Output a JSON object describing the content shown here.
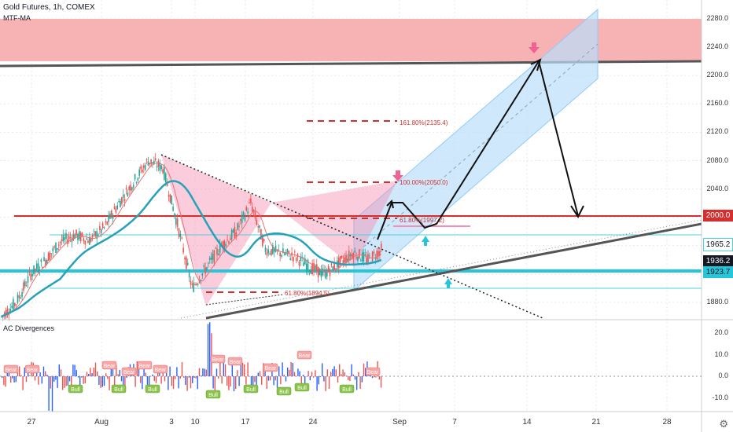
{
  "header": {
    "symbol_line": "Gold Futures, 1h, COMEX",
    "indicator_main": "MTF-MA",
    "indicator_sub": "AC Divergences"
  },
  "chart_data": [
    {
      "type": "line",
      "title": "Gold Futures, 1h, COMEX",
      "ylim": [
        1855,
        2295
      ],
      "y_ticks": [
        "2280.0",
        "2240.0",
        "2200.0",
        "2160.0",
        "2120.0",
        "2080.0",
        "2040.0",
        "2000.0",
        "1960.0",
        "1920.0",
        "1880.0"
      ],
      "x_ticks": [
        "27",
        "Aug",
        "3",
        "10",
        "17",
        "24",
        "Sep",
        "7",
        "14",
        "21",
        "28"
      ],
      "series": [
        {
          "name": "",
          "x": [
            0,
            0.02,
            0.04,
            0.06,
            0.08,
            0.1,
            0.12,
            0.14,
            0.16,
            0.18,
            0.2,
            0.22,
            0.24,
            0.26,
            0.28,
            0.3,
            0.32,
            0.34,
            0.36,
            0.38,
            0.4,
            0.42,
            0.44,
            0.46,
            0.48,
            0.5,
            0.52
          ],
          "values": [
            1860,
            1880,
            1920,
            1940,
            1965,
            1975,
            1968,
            1985,
            2020,
            2050,
            2080,
            2070,
            1990,
            1900,
            1930,
            1960,
            1980,
            2020,
            1955,
            1950,
            1945,
            1930,
            1920,
            1935,
            1950,
            1940,
            1956
          ]
        }
      ],
      "price_labels": {
        "level_2000": "2000.0",
        "level_1965": "1965.2",
        "current": "1936.2",
        "level_1923": "1923.7"
      },
      "fib_labels": [
        "161.80%(2135.4)",
        "100.00%(2050.0)",
        "61.80%(1997.2)",
        "61.80%(1894.5)"
      ]
    },
    {
      "type": "bar",
      "title": "AC Divergences",
      "ylim": [
        -15,
        30
      ],
      "y_ticks": [
        "20.0",
        "10.0",
        "0.0",
        "-10.0"
      ],
      "bear_labels": [
        "Bear",
        "Bear",
        "Bear",
        "Bear",
        "Bear",
        "Bear",
        "Bear",
        "Bear",
        "Bear",
        "Bear",
        "Bear"
      ],
      "bull_labels": [
        "Bull",
        "Bull",
        "Bull",
        "Bull",
        "Bull",
        "Bull",
        "Bull",
        "Bull"
      ]
    }
  ],
  "colors": {
    "bull": "#26a69a",
    "bear": "#ef5350",
    "resistance_zone": "#f7b3b3",
    "channel": "#bbdefb",
    "ma_line": "#26a2b8",
    "red_line": "#d32f2f"
  }
}
